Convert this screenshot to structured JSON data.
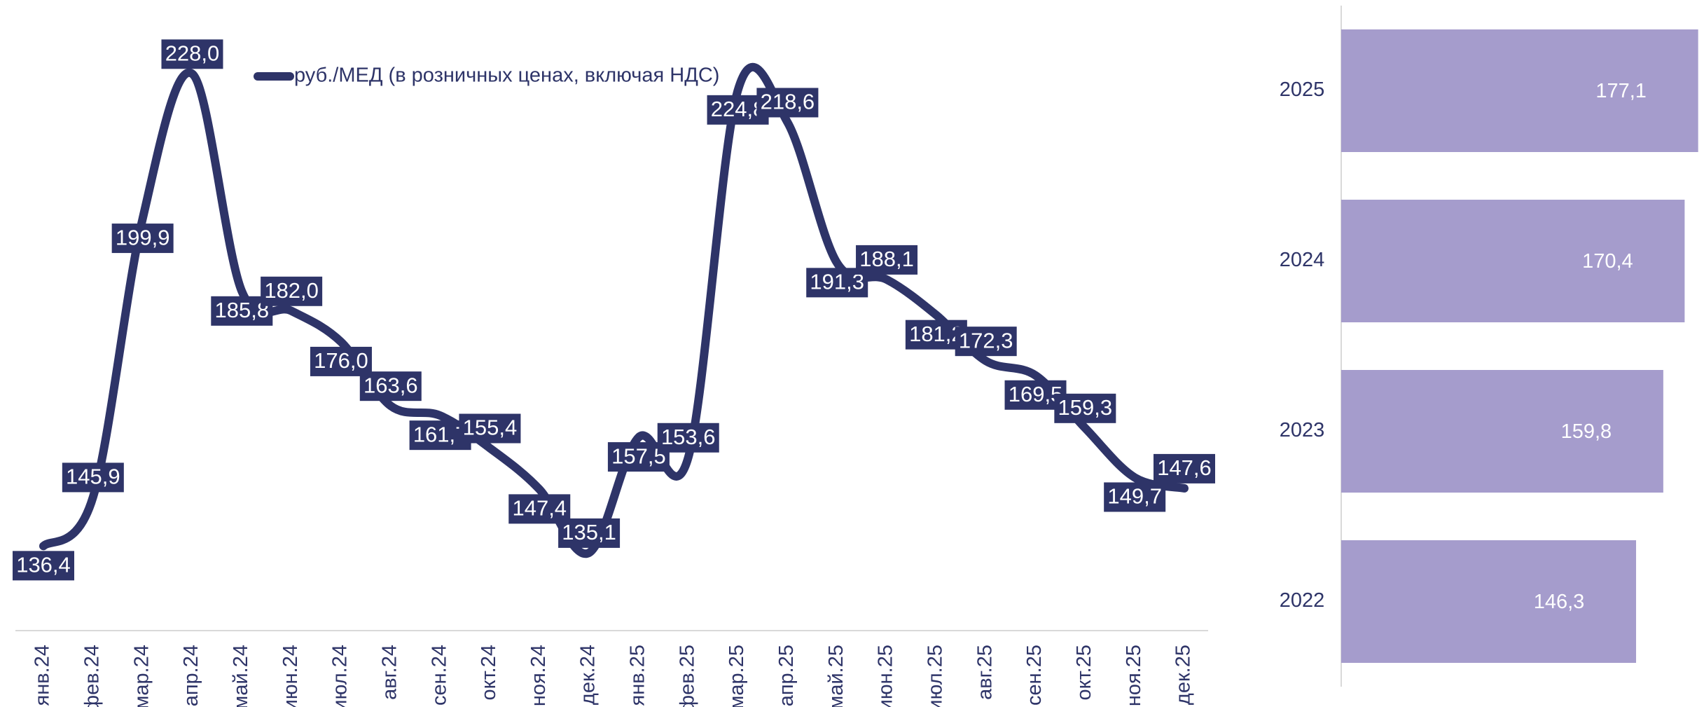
{
  "chart_data": [
    {
      "type": "line",
      "categories": [
        "янв.24",
        "фев.24",
        "мар.24",
        "апр.24",
        "май.24",
        "июн.24",
        "июл.24",
        "авг.24",
        "сен.24",
        "окт.24",
        "ноя.24",
        "дек.24",
        "янв.25",
        "фев.25",
        "мар.25",
        "апр.25",
        "май.25",
        "июн.25",
        "июл.25",
        "авг.25",
        "сен.25",
        "окт.25",
        "ноя.25",
        "дек.25"
      ],
      "series": [
        {
          "name": "руб./МЕД (в розничных ценах, включая НДС)",
          "color": "#2e3468",
          "values": [
            136.4,
            145.9,
            199.9,
            228.0,
            185.8,
            182.0,
            176.0,
            163.6,
            161.7,
            155.4,
            147.4,
            135.1,
            157.5,
            153.6,
            224.8,
            218.6,
            191.3,
            188.1,
            181.2,
            172.3,
            169.5,
            159.3,
            149.7,
            147.6
          ],
          "value_labels": [
            "136,4",
            "145,9",
            "199,9",
            "228,0",
            "185,8",
            "182,0",
            "176,0",
            "163,6",
            "161,7",
            "155,4",
            "147,4",
            "135,1",
            "157,5",
            "153,6",
            "224,8",
            "218,6",
            "191,3",
            "188,1",
            "181,2",
            "172,3",
            "169,5",
            "159,3",
            "149,7",
            "147,6"
          ]
        }
      ],
      "ylim": [
        120,
        240
      ]
    },
    {
      "type": "hbar",
      "categories": [
        "2025",
        "2024",
        "2023",
        "2022"
      ],
      "values": [
        177.1,
        170.4,
        159.8,
        146.3
      ],
      "value_labels": [
        "177,1",
        "170,4",
        "159,8",
        "146,3"
      ],
      "color": "#a59ccc",
      "xlim": [
        0,
        180
      ]
    }
  ]
}
